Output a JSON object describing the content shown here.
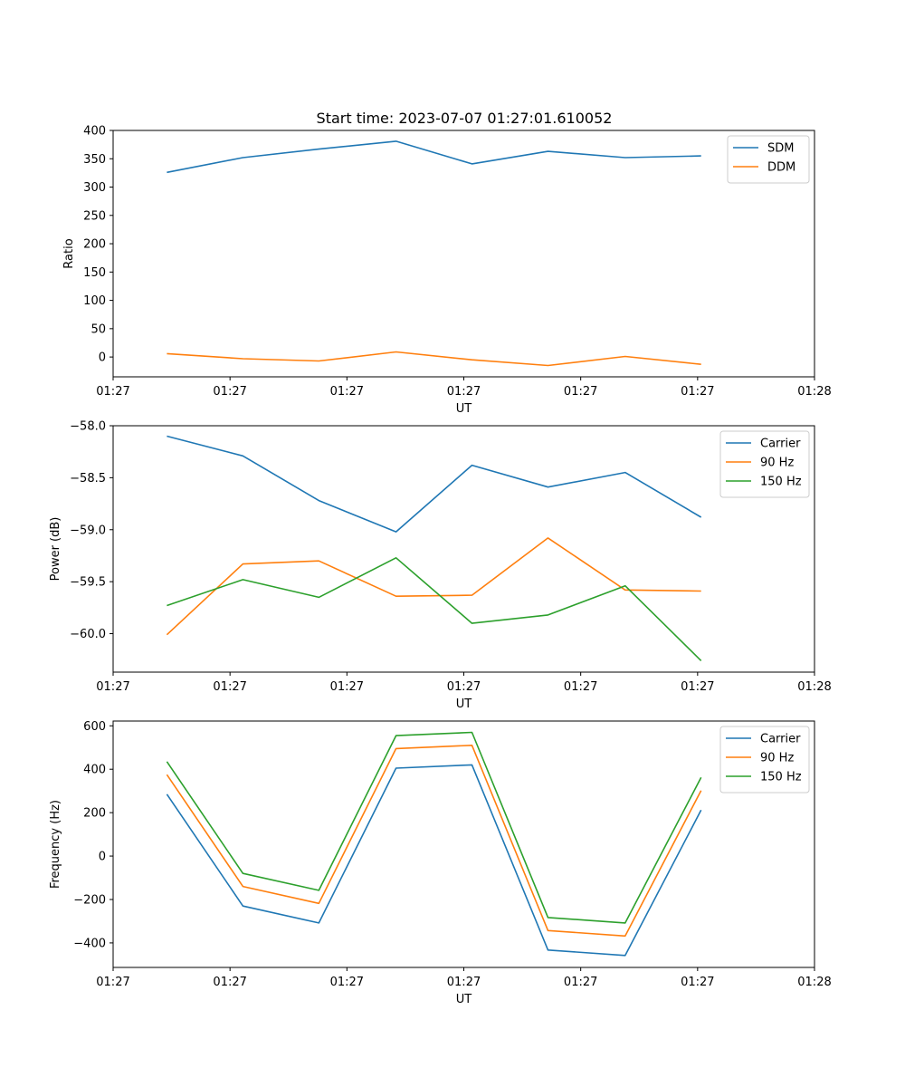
{
  "title": "Start time: 2023-07-07 01:27:01.610052",
  "colors": {
    "blue": "#1f77b4",
    "orange": "#ff7f0e",
    "green": "#2ca02c"
  },
  "chart_data": [
    {
      "type": "line",
      "xlabel": "UT",
      "ylabel": "Ratio",
      "xlim": [
        0,
        6
      ],
      "ylim": [
        -35,
        400
      ],
      "yticks": [
        0,
        50,
        100,
        150,
        200,
        250,
        300,
        350,
        400
      ],
      "ytick_labels": [
        "0",
        "50",
        "100",
        "150",
        "200",
        "250",
        "300",
        "350",
        "400"
      ],
      "xticks": [
        0,
        1,
        2,
        3,
        4,
        5,
        6
      ],
      "xtick_labels": [
        "01:27",
        "01:27",
        "01:27",
        "01:27",
        "01:27",
        "01:27",
        "01:28"
      ],
      "x": [
        0.46,
        1.11,
        1.76,
        2.42,
        3.07,
        3.72,
        4.38,
        5.03
      ],
      "legend_position": "top-right",
      "series": [
        {
          "name": "SDM",
          "color": "#1f77b4",
          "values": [
            326,
            352,
            367,
            381,
            341,
            363,
            352,
            355
          ]
        },
        {
          "name": "DDM",
          "color": "#ff7f0e",
          "values": [
            6,
            -3,
            -7,
            9,
            -5,
            -15,
            1,
            -13
          ]
        }
      ]
    },
    {
      "type": "line",
      "xlabel": "UT",
      "ylabel": "Power (dB)",
      "xlim": [
        0,
        6
      ],
      "ylim": [
        -60.37,
        -58.0
      ],
      "yticks": [
        -60.0,
        -59.5,
        -59.0,
        -58.5,
        -58.0
      ],
      "ytick_labels": [
        "−60.0",
        "−59.5",
        "−59.0",
        "−58.5",
        "−58.0"
      ],
      "xticks": [
        0,
        1,
        2,
        3,
        4,
        5,
        6
      ],
      "xtick_labels": [
        "01:27",
        "01:27",
        "01:27",
        "01:27",
        "01:27",
        "01:27",
        "01:28"
      ],
      "x": [
        0.46,
        1.11,
        1.76,
        2.42,
        3.07,
        3.72,
        4.38,
        5.03
      ],
      "legend_position": "top-right",
      "series": [
        {
          "name": "Carrier",
          "color": "#1f77b4",
          "values": [
            -58.1,
            -58.29,
            -58.72,
            -59.02,
            -58.38,
            -58.59,
            -58.45,
            -58.88
          ]
        },
        {
          "name": "90 Hz",
          "color": "#ff7f0e",
          "values": [
            -60.01,
            -59.33,
            -59.3,
            -59.64,
            -59.63,
            -59.08,
            -59.58,
            -59.59
          ]
        },
        {
          "name": "150 Hz",
          "color": "#2ca02c",
          "values": [
            -59.73,
            -59.48,
            -59.65,
            -59.27,
            -59.9,
            -59.82,
            -59.54,
            -60.26
          ]
        }
      ]
    },
    {
      "type": "line",
      "xlabel": "UT",
      "ylabel": "Frequency (Hz)",
      "xlim": [
        0,
        6
      ],
      "ylim": [
        -513,
        622
      ],
      "yticks": [
        -400,
        -200,
        0,
        200,
        400,
        600
      ],
      "ytick_labels": [
        "−400",
        "−200",
        "0",
        "200",
        "400",
        "600"
      ],
      "xticks": [
        0,
        1,
        2,
        3,
        4,
        5,
        6
      ],
      "xtick_labels": [
        "01:27",
        "01:27",
        "01:27",
        "01:27",
        "01:27",
        "01:27",
        "01:28"
      ],
      "x": [
        0.46,
        1.11,
        1.76,
        2.42,
        3.07,
        3.72,
        4.38,
        5.03
      ],
      "legend_position": "top-right",
      "series": [
        {
          "name": "Carrier",
          "color": "#1f77b4",
          "values": [
            285,
            -230,
            -308,
            405,
            420,
            -433,
            -458,
            212
          ]
        },
        {
          "name": "90 Hz",
          "color": "#ff7f0e",
          "values": [
            375,
            -140,
            -218,
            495,
            510,
            -343,
            -368,
            302
          ]
        },
        {
          "name": "150 Hz",
          "color": "#2ca02c",
          "values": [
            435,
            -80,
            -158,
            555,
            570,
            -283,
            -308,
            362
          ]
        }
      ]
    }
  ]
}
